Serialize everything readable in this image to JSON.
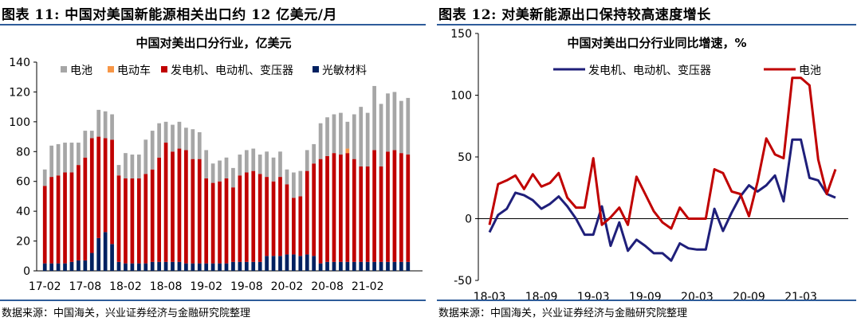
{
  "left": {
    "figure_title": "图表 11:  中国对美国新能源相关出口约 12 亿美元/月",
    "source": "数据来源：中国海关，兴业证券经济与金融研究院整理"
  },
  "right": {
    "figure_title": "图表 12:  对美新能源出口保持较高速度增长",
    "source": "数据来源：中国海关，兴业证券经济与金融研究院整理"
  },
  "colors": {
    "battery": "#a6a6a6",
    "ev": "#f79646",
    "generator": "#c00000",
    "pv": "#002060",
    "line_generator": "#1f1f7a",
    "line_battery": "#c00000",
    "rule": "#2e5c9a"
  },
  "chart_data": [
    {
      "type": "bar",
      "stacked": true,
      "title": "中国对美出口分行业，亿美元",
      "ylim": [
        0,
        140
      ],
      "yticks": [
        0,
        20,
        40,
        60,
        80,
        100,
        120,
        140
      ],
      "tick_labels": [
        "17-02",
        "17-08",
        "18-02",
        "18-08",
        "19-02",
        "19-08",
        "20-02",
        "20-08",
        "21-02"
      ],
      "tick_indices": [
        0,
        6,
        12,
        18,
        24,
        30,
        36,
        42,
        48
      ],
      "legend": "top",
      "categories": [
        "17-02",
        "17-03",
        "17-04",
        "17-05",
        "17-06",
        "17-07",
        "17-08",
        "17-09",
        "17-10",
        "17-11",
        "17-12",
        "18-01",
        "18-02",
        "18-03",
        "18-04",
        "18-05",
        "18-06",
        "18-07",
        "18-08",
        "18-09",
        "18-10",
        "18-11",
        "18-12",
        "19-01",
        "19-02",
        "19-03",
        "19-04",
        "19-05",
        "19-06",
        "19-07",
        "19-08",
        "19-09",
        "19-10",
        "19-11",
        "19-12",
        "20-01",
        "20-02",
        "20-03",
        "20-04",
        "20-05",
        "20-06",
        "20-07",
        "20-08",
        "20-09",
        "20-10",
        "20-11",
        "20-12",
        "21-01",
        "21-02",
        "21-03",
        "21-04",
        "21-05",
        "21-06",
        "21-07",
        "21-08"
      ],
      "series": [
        {
          "name": "光敏材料",
          "color_key": "pv",
          "values": [
            5,
            5,
            5,
            5,
            6,
            7,
            7,
            12,
            22,
            26,
            18,
            6,
            5,
            5,
            5,
            5,
            6,
            6,
            6,
            6,
            6,
            5,
            5,
            5,
            5,
            5,
            5,
            5,
            6,
            6,
            6,
            6,
            6,
            10,
            10,
            10,
            11,
            11,
            10,
            11,
            10,
            5,
            6,
            6,
            6,
            6,
            6,
            6,
            6,
            6,
            6,
            6,
            6,
            6,
            6
          ]
        },
        {
          "name": "发电机、电动机、变压器",
          "color_key": "generator",
          "values": [
            52,
            58,
            59,
            61,
            60,
            64,
            69,
            77,
            68,
            63,
            70,
            58,
            57,
            57,
            57,
            60,
            62,
            70,
            80,
            74,
            76,
            76,
            70,
            70,
            57,
            54,
            55,
            57,
            50,
            58,
            60,
            61,
            59,
            53,
            50,
            53,
            47,
            38,
            40,
            56,
            62,
            70,
            71,
            73,
            72,
            73,
            69,
            64,
            64,
            75,
            64,
            74,
            75,
            73,
            72
          ]
        },
        {
          "name": "电动车",
          "color_key": "ev",
          "values": [
            0,
            0,
            0,
            0,
            0,
            0,
            0,
            0,
            0,
            0,
            0,
            0,
            0,
            0,
            0,
            0,
            0,
            0,
            0,
            0,
            0,
            0,
            0,
            0,
            0,
            0,
            0,
            0,
            0,
            0,
            0,
            0,
            0,
            0,
            0,
            0,
            0,
            0,
            0,
            0,
            0,
            0,
            0,
            0,
            0,
            3,
            0,
            0,
            0,
            0,
            0,
            0,
            0,
            0,
            0
          ]
        },
        {
          "name": "电池",
          "color_key": "battery",
          "values": [
            11,
            21,
            21,
            20,
            20,
            15,
            18,
            5,
            18,
            18,
            17,
            7,
            17,
            16,
            16,
            23,
            26,
            23,
            14,
            18,
            18,
            15,
            20,
            18,
            19,
            13,
            14,
            14,
            13,
            14,
            15,
            15,
            13,
            17,
            16,
            17,
            10,
            17,
            17,
            14,
            13,
            24,
            26,
            26,
            28,
            18,
            30,
            40,
            36,
            43,
            42,
            39,
            39,
            35,
            38
          ]
        }
      ]
    },
    {
      "type": "line",
      "title": "中国对美出口分行业同比增速，%",
      "ylim": [
        -50,
        150
      ],
      "yticks": [
        -50,
        0,
        50,
        100,
        150
      ],
      "tick_labels": [
        "18-03",
        "18-09",
        "19-03",
        "19-09",
        "20-03",
        "20-09",
        "21-03"
      ],
      "tick_indices": [
        0,
        6,
        12,
        18,
        24,
        30,
        36
      ],
      "legend": "top",
      "categories": [
        "18-03",
        "18-04",
        "18-05",
        "18-06",
        "18-07",
        "18-08",
        "18-09",
        "18-10",
        "18-11",
        "18-12",
        "19-01",
        "19-02",
        "19-03",
        "19-04",
        "19-05",
        "19-06",
        "19-07",
        "19-08",
        "19-09",
        "19-10",
        "19-11",
        "19-12",
        "20-01",
        "20-02",
        "20-03",
        "20-04",
        "20-05",
        "20-06",
        "20-07",
        "20-08",
        "20-09",
        "20-10",
        "20-11",
        "20-12",
        "21-01",
        "21-02",
        "21-03",
        "21-04",
        "21-05",
        "21-06",
        "21-07"
      ],
      "series": [
        {
          "name": "发电机、电动机、变压器",
          "color_key": "line_generator",
          "values": [
            -11,
            3,
            8,
            21,
            19,
            15,
            8,
            12,
            18,
            10,
            0,
            -13,
            -13,
            10,
            -22,
            -3,
            -26,
            -17,
            -22,
            -28,
            -28,
            -34,
            -20,
            -24,
            -25,
            -25,
            8,
            -10,
            5,
            18,
            27,
            22,
            27,
            35,
            14,
            64,
            64,
            33,
            31,
            20,
            17
          ]
        },
        {
          "name": "电池",
          "color_key": "line_battery",
          "values": [
            -5,
            28,
            31,
            35,
            24,
            36,
            26,
            29,
            37,
            17,
            9,
            9,
            49,
            -5,
            1,
            9,
            -5,
            34,
            20,
            6,
            -3,
            -8,
            9,
            0,
            0,
            0,
            40,
            37,
            22,
            20,
            2,
            30,
            65,
            52,
            49,
            114,
            114,
            108,
            48,
            20,
            40
          ]
        }
      ]
    }
  ]
}
